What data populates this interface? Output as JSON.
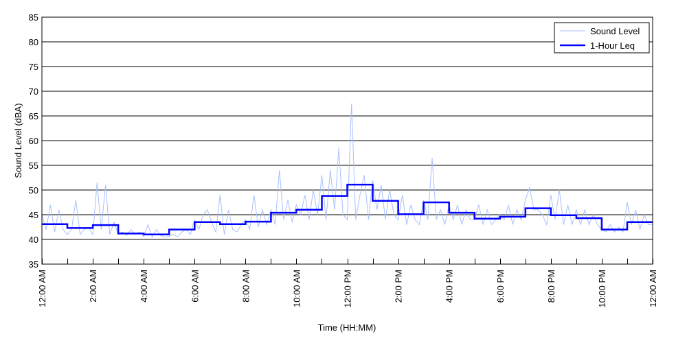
{
  "chart_data": {
    "type": "line",
    "title": "",
    "xlabel": "Time (HH:MM)",
    "ylabel": "Sound Level (dBA)",
    "ylim": [
      35,
      85
    ],
    "yticks": [
      35,
      40,
      45,
      50,
      55,
      60,
      65,
      70,
      75,
      80,
      85
    ],
    "xlim_hours": [
      0,
      24
    ],
    "xtick_labels": [
      "12:00 AM",
      "2:00 AM",
      "4:00 AM",
      "6:00 AM",
      "8:00 AM",
      "10:00 AM",
      "12:00 PM",
      "2:00 PM",
      "4:00 PM",
      "6:00 PM",
      "8:00 PM",
      "10:00 PM",
      "12:00 AM"
    ],
    "grid": "horizontal",
    "legend_position": "top-right",
    "colors": {
      "sound_level": "#a8c0ff",
      "leq": "#0000ff"
    },
    "series": [
      {
        "name": "Sound Level",
        "interval_minutes": 10,
        "values": [
          45,
          42,
          47,
          41.5,
          46,
          42,
          41,
          42,
          48,
          41,
          42,
          42.5,
          41,
          51.5,
          42,
          51,
          41,
          43.5,
          41,
          41.5,
          40.8,
          42,
          41,
          41.5,
          40.5,
          43,
          40.5,
          42,
          40.8,
          40.5,
          40.6,
          41,
          40.5,
          41.5,
          42,
          41,
          44,
          42,
          45,
          46,
          43.5,
          41.5,
          49,
          41,
          46,
          42,
          41.5,
          43,
          44,
          42,
          49,
          42.5,
          46,
          43,
          46,
          43,
          54,
          44,
          48,
          43.5,
          47,
          45,
          49,
          44,
          50,
          45,
          53,
          44,
          54,
          46,
          58.5,
          45,
          44,
          67.5,
          44,
          49,
          53,
          44,
          52,
          46,
          51,
          44,
          50,
          45,
          44,
          49,
          43,
          47,
          44,
          43,
          48,
          44,
          56.5,
          44,
          46,
          43,
          47,
          44,
          47,
          43,
          46,
          44,
          44,
          47,
          43,
          46,
          43,
          44,
          45,
          44,
          47,
          43,
          46,
          44,
          48,
          50.5,
          46,
          46,
          45,
          43,
          49,
          44,
          50,
          43,
          47,
          43,
          46,
          43,
          46,
          43,
          45,
          43,
          42,
          41.5,
          43,
          41.5,
          42.5,
          41.5,
          47.5,
          43,
          46,
          42,
          45,
          43,
          43
        ]
      },
      {
        "name": "1-Hour Leq",
        "interval_minutes": 60,
        "values": [
          43.1,
          42.3,
          42.9,
          41.2,
          41.0,
          42.0,
          43.5,
          43.1,
          43.6,
          45.4,
          46.0,
          48.8,
          51.1,
          47.8,
          45.1,
          47.5,
          45.4,
          44.2,
          44.6,
          46.3,
          44.9,
          44.3,
          42.0,
          43.5
        ]
      }
    ]
  }
}
